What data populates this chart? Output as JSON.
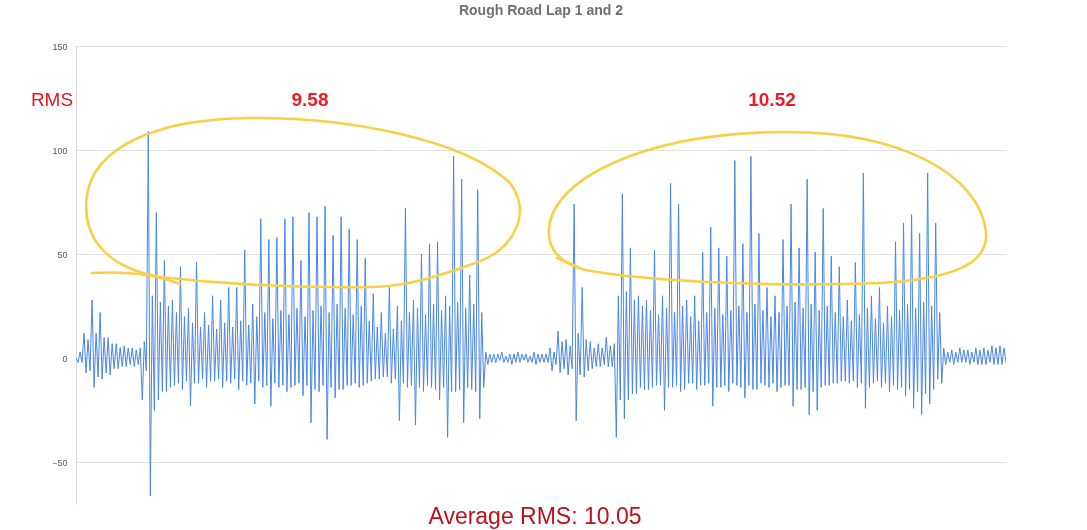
{
  "chart_data": {
    "type": "line",
    "title": "Rough Road Lap 1 and 2",
    "categories": [
      null,
      null,
      null,
      null,
      null,
      null,
      null,
      null,
      null,
      null,
      null,
      null,
      null,
      null,
      null,
      null,
      null,
      null,
      null,
      null,
      null,
      null,
      null,
      null,
      null,
      null,
      null,
      null,
      null,
      null,
      null,
      null,
      null,
      null,
      null,
      null,
      null,
      null,
      null,
      null,
      null,
      null,
      null,
      null,
      null,
      null,
      null,
      null,
      null,
      null,
      null,
      null,
      null,
      null,
      null,
      null,
      null,
      null,
      null,
      null,
      null,
      null,
      null,
      null,
      null,
      null,
      null,
      null,
      null,
      null,
      null,
      null,
      null,
      null,
      null,
      null,
      null,
      null,
      null,
      null,
      null,
      null,
      null,
      null,
      null,
      null,
      null,
      null,
      null,
      null,
      null,
      null,
      null,
      null,
      null,
      null,
      null,
      null,
      null,
      null,
      null,
      null,
      null,
      null,
      null,
      null,
      null,
      null,
      null,
      null,
      null,
      null,
      null,
      null,
      null,
      null,
      null,
      null,
      null,
      null,
      null,
      null,
      null,
      null,
      null,
      null,
      null,
      null,
      null,
      null,
      null,
      null,
      null,
      null,
      null,
      null,
      null,
      null,
      null,
      null,
      null,
      null,
      null,
      null,
      null,
      null,
      null,
      null,
      null,
      null,
      null,
      null,
      null,
      null,
      null,
      null,
      null,
      null,
      null,
      null,
      null,
      null,
      null,
      null,
      null,
      null,
      null,
      null,
      null,
      null,
      null,
      null,
      null,
      null,
      null,
      null,
      null,
      null,
      null,
      null,
      null,
      null,
      null,
      null,
      null,
      null,
      null,
      null,
      null,
      null,
      null,
      null,
      null,
      null,
      null,
      null,
      null,
      null,
      null,
      null,
      null,
      null,
      null,
      null,
      null,
      null,
      null,
      null,
      null,
      null,
      null,
      null,
      null,
      null,
      null,
      null,
      null,
      null,
      null,
      null,
      null,
      null,
      null,
      null,
      null,
      null,
      null,
      null,
      null,
      null,
      null,
      null,
      null,
      null,
      null,
      null,
      null,
      null,
      null,
      null,
      null,
      null,
      null,
      null,
      null,
      null,
      null,
      null,
      null,
      null,
      null,
      null,
      null,
      null,
      null,
      null,
      null,
      null,
      null,
      null,
      null,
      null,
      null,
      null,
      null,
      null,
      null,
      null,
      null,
      null,
      null,
      null,
      null,
      null,
      null,
      null,
      null,
      null,
      null,
      null,
      null,
      null,
      null,
      null,
      null,
      null,
      null,
      null,
      null,
      null,
      null,
      null,
      null,
      null,
      null,
      null,
      null,
      null,
      null,
      null,
      null,
      null,
      null,
      null,
      null,
      null,
      null,
      null,
      null,
      null,
      null,
      null,
      null,
      null,
      null,
      null,
      null,
      null,
      null,
      null,
      null,
      null,
      null,
      null,
      null,
      null,
      null,
      null,
      null,
      null,
      null,
      null,
      null,
      null,
      null,
      null,
      null,
      null,
      null,
      null,
      null,
      null,
      null,
      null,
      null,
      null,
      null,
      null,
      null,
      null,
      null,
      null,
      null,
      null,
      null,
      null,
      null,
      null,
      null,
      null,
      null,
      null,
      null,
      null,
      null,
      null,
      null,
      null,
      null,
      null,
      null,
      null,
      null,
      null,
      null,
      null,
      null,
      null,
      null,
      null,
      null,
      null,
      null,
      null,
      null,
      null,
      null,
      null,
      null,
      null,
      null,
      null,
      null,
      null,
      null,
      null,
      null,
      null,
      null,
      null,
      null,
      null,
      null,
      null,
      null,
      null,
      null,
      null,
      null,
      null,
      null,
      null,
      null,
      null,
      null,
      null,
      null,
      null,
      null,
      null,
      null,
      null,
      null,
      null,
      null,
      null,
      null,
      null,
      null,
      null,
      null,
      null,
      null,
      null,
      null,
      null,
      null,
      null,
      null,
      null,
      null,
      null,
      null,
      null,
      null,
      null,
      null,
      null,
      null,
      null,
      null,
      null,
      null,
      null,
      null,
      null,
      null,
      null,
      null,
      null,
      null,
      null,
      null,
      null
    ],
    "series": [
      {
        "color": "#4a86e8",
        "values": [
          0,
          -2,
          3,
          -2,
          12,
          -7,
          9,
          -6,
          28,
          -14,
          12,
          -9,
          22,
          -10,
          10,
          -7,
          10,
          -8,
          7,
          -5,
          7,
          -5,
          5,
          -4,
          6,
          -4,
          5,
          -3,
          5,
          -4,
          4,
          -3,
          5,
          -20,
          8,
          -6,
          109,
          -66,
          30,
          -25,
          70,
          -20,
          27,
          -16,
          47,
          -16,
          25,
          -14,
          28,
          -13,
          22,
          -12,
          44,
          -15,
          20,
          -11,
          24,
          -23,
          17,
          -12,
          46,
          -12,
          15,
          -10,
          22,
          -14,
          16,
          -11,
          30,
          -11,
          14,
          -10,
          28,
          -14,
          17,
          -11,
          34,
          -12,
          15,
          -10,
          34,
          -15,
          18,
          -11,
          52,
          -13,
          16,
          -12,
          26,
          -22,
          20,
          -11,
          67,
          -14,
          22,
          -13,
          57,
          -23,
          19,
          -12,
          58,
          -14,
          23,
          -13,
          67,
          -16,
          21,
          -14,
          68,
          -13,
          24,
          -12,
          47,
          -18,
          20,
          -13,
          70,
          -31,
          23,
          -15,
          68,
          -16,
          25,
          -13,
          73,
          -39,
          22,
          -14,
          59,
          -19,
          26,
          -15,
          68,
          -15,
          24,
          -13,
          62,
          -13,
          21,
          -12,
          57,
          -14,
          25,
          -13,
          48,
          -12,
          18,
          -11,
          31,
          -10,
          15,
          -10,
          22,
          -9,
          12,
          -9,
          34,
          -12,
          14,
          -10,
          25,
          -30,
          18,
          -12,
          72,
          -14,
          22,
          -13,
          28,
          -32,
          24,
          -14,
          50,
          -16,
          21,
          -13,
          55,
          -14,
          26,
          -15,
          56,
          -20,
          23,
          -14,
          30,
          -38,
          25,
          -16,
          97,
          -16,
          27,
          -15,
          86,
          -31,
          24,
          -14,
          40,
          -15,
          26,
          -16,
          81,
          -29,
          22,
          -14,
          3,
          -3,
          2,
          -2,
          2,
          -2,
          2,
          -1,
          3,
          -2,
          1,
          -2,
          2,
          -3,
          2,
          -2,
          3,
          -2,
          2,
          -1,
          2,
          -2,
          1,
          -2,
          3,
          -3,
          2,
          -2,
          2,
          -2,
          2,
          -2,
          5,
          -6,
          3,
          -3,
          13,
          -7,
          8,
          -5,
          9,
          -8,
          6,
          -5,
          74,
          -30,
          12,
          -8,
          34,
          -9,
          9,
          -6,
          8,
          -5,
          5,
          -4,
          7,
          -4,
          5,
          -3,
          10,
          -4,
          6,
          -4,
          7,
          -38,
          30,
          -20,
          79,
          -29,
          32,
          -20,
          53,
          -17,
          28,
          -17,
          30,
          -14,
          25,
          -15,
          28,
          -15,
          23,
          -14,
          52,
          -13,
          21,
          -13,
          30,
          -25,
          24,
          -14,
          84,
          -14,
          22,
          -13,
          74,
          -16,
          25,
          -15,
          28,
          -12,
          20,
          -12,
          30,
          -15,
          18,
          -13,
          51,
          -13,
          22,
          -12,
          63,
          -23,
          24,
          -14,
          53,
          -14,
          21,
          -13,
          49,
          -16,
          23,
          -12,
          95,
          -13,
          25,
          -14,
          55,
          -19,
          22,
          -13,
          97,
          -15,
          26,
          -15,
          60,
          -12,
          23,
          -13,
          34,
          -14,
          20,
          -12,
          30,
          -16,
          22,
          -14,
          57,
          -13,
          25,
          -13,
          74,
          -23,
          27,
          -15,
          53,
          -15,
          24,
          -14,
          86,
          -27,
          26,
          -16,
          51,
          -25,
          23,
          -14,
          72,
          -13,
          25,
          -13,
          49,
          -12,
          22,
          -12,
          44,
          -11,
          20,
          -11,
          28,
          -12,
          18,
          -11,
          46,
          -14,
          21,
          -12,
          89,
          -24,
          24,
          -14,
          30,
          -12,
          19,
          -11,
          34,
          -14,
          17,
          -12,
          25,
          -16,
          20,
          -13,
          56,
          -15,
          23,
          -14,
          65,
          -18,
          26,
          -15,
          69,
          -24,
          24,
          -16,
          60,
          -27,
          27,
          -17,
          89,
          -22,
          25,
          -15,
          65,
          -10,
          22,
          -12,
          5,
          -3,
          3,
          -2,
          4,
          -3,
          3,
          -2,
          5,
          -2,
          4,
          -2,
          4,
          -3,
          3,
          -2,
          5,
          -3,
          4,
          -3,
          5,
          -3,
          4,
          -2,
          6,
          -3,
          5,
          -3,
          6,
          -3,
          5,
          -2
        ]
      }
    ],
    "ylim": [
      -70,
      150
    ],
    "yticks": [
      -50,
      0,
      50,
      100,
      150
    ],
    "grid": true,
    "tick_labels": "y",
    "annotations": [
      "RMS",
      "9.58",
      "10.52",
      "Average RMS: 10.05"
    ]
  }
}
